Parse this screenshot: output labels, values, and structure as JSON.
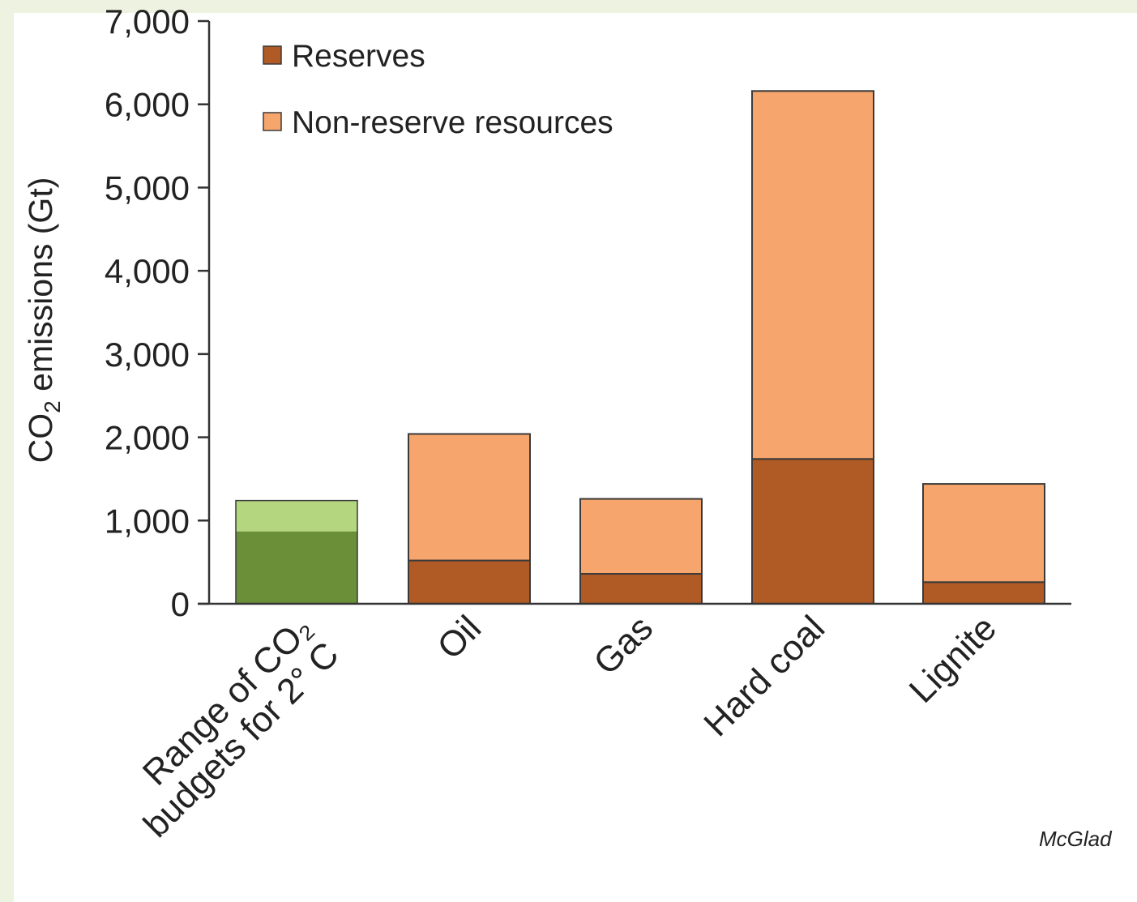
{
  "chart_data": {
    "type": "bar",
    "stacked": true,
    "categories": [
      "Range of CO2 budgets for 2° C",
      "Oil",
      "Gas",
      "Hard coal",
      "Lignite"
    ],
    "category_label_lines": [
      [
        "Range of CO₂",
        "budgets for 2° C"
      ],
      [
        "Oil"
      ],
      [
        "Gas"
      ],
      [
        "Hard coal"
      ],
      [
        "Lignite"
      ]
    ],
    "series": [
      {
        "name": "Reserves",
        "color": "#b05a26",
        "values": [
          null,
          520,
          360,
          1740,
          260
        ]
      },
      {
        "name": "Non-reserve resources",
        "color": "#f6a56c",
        "values": [
          null,
          1520,
          900,
          4420,
          1180
        ]
      }
    ],
    "budget_range": {
      "low": 870,
      "high": 1240,
      "low_color": "#6b8f38",
      "high_color": "#b4d67e"
    },
    "yticks": [
      0,
      1000,
      2000,
      3000,
      4000,
      5000,
      6000,
      7000
    ],
    "ytick_labels": [
      "0",
      "1,000",
      "2,000",
      "3,000",
      "4,000",
      "5,000",
      "6,000",
      "7,000"
    ],
    "ylim": [
      0,
      7000
    ],
    "ylabel": {
      "prefix": "CO",
      "sub": "2",
      "suffix": " emissions (Gt)"
    },
    "xlabel": "",
    "legend_position": "top-left",
    "grid": false
  },
  "citation": "McGlad"
}
